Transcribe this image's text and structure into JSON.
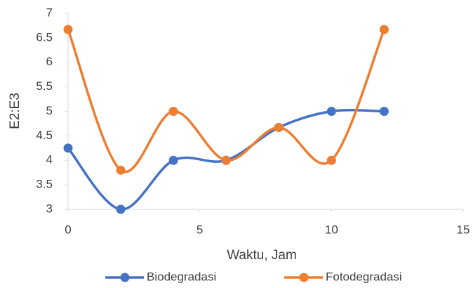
{
  "chart_data": {
    "type": "line",
    "smooth": true,
    "x_label": "Waktu, Jam",
    "y_label": "E2:E3",
    "x": [
      0,
      2,
      4,
      6,
      8,
      10,
      12
    ],
    "series": [
      {
        "name": "Biodegradasi",
        "color": "#4472c4",
        "values": [
          4.25,
          3,
          4,
          4,
          4.67,
          5,
          5
        ]
      },
      {
        "name": "Fotodegradasi",
        "color": "#ed7d31",
        "values": [
          6.67,
          3.8,
          5,
          4,
          4.67,
          4,
          6.67
        ]
      }
    ],
    "xlim": [
      0,
      15
    ],
    "xticks": [
      0,
      5,
      10,
      15
    ],
    "ylim": [
      3,
      7
    ],
    "yticks": [
      3,
      3.5,
      4,
      4.5,
      5,
      5.5,
      6,
      6.5,
      7
    ],
    "grid": false,
    "legend": "bottom"
  }
}
